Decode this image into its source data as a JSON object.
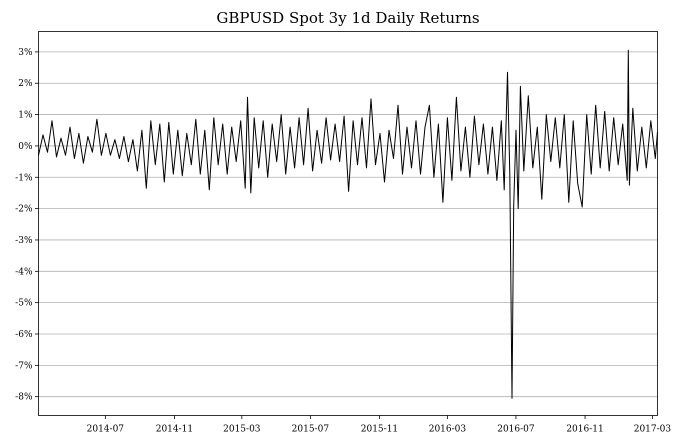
{
  "chart_data": {
    "type": "line",
    "title": "GBPUSD Spot 3y 1d Daily Returns",
    "xlabel": "",
    "ylabel": "",
    "x_range": [
      "2014-03-04",
      "2017-03-10"
    ],
    "ylim": [
      -8.6,
      3.65
    ],
    "y_ticks": [
      {
        "value": 3,
        "label": "3%"
      },
      {
        "value": 2,
        "label": "2%"
      },
      {
        "value": 1,
        "label": "1%"
      },
      {
        "value": 0,
        "label": "0%"
      },
      {
        "value": -1,
        "label": "-1%"
      },
      {
        "value": -2,
        "label": "-2%"
      },
      {
        "value": -3,
        "label": "-3%"
      },
      {
        "value": -4,
        "label": "-4%"
      },
      {
        "value": -5,
        "label": "-5%"
      },
      {
        "value": -6,
        "label": "-6%"
      },
      {
        "value": -7,
        "label": "-7%"
      },
      {
        "value": -8,
        "label": "-8%"
      }
    ],
    "x_ticks": [
      {
        "value": "2014-07-01",
        "label": "2014-07"
      },
      {
        "value": "2014-11-01",
        "label": "2014-11"
      },
      {
        "value": "2015-03-01",
        "label": "2015-03"
      },
      {
        "value": "2015-07-01",
        "label": "2015-07"
      },
      {
        "value": "2015-11-01",
        "label": "2015-11"
      },
      {
        "value": "2016-03-01",
        "label": "2016-03"
      },
      {
        "value": "2016-07-01",
        "label": "2016-07"
      },
      {
        "value": "2016-11-01",
        "label": "2016-11"
      },
      {
        "value": "2017-03-01",
        "label": "2017-03"
      }
    ],
    "grid": "horizontal",
    "series": [
      {
        "points": [
          [
            "2014-03-04",
            -0.3
          ],
          [
            "2014-03-12",
            0.35
          ],
          [
            "2014-03-20",
            -0.2
          ],
          [
            "2014-03-28",
            0.8
          ],
          [
            "2014-04-05",
            -0.35
          ],
          [
            "2014-04-13",
            0.25
          ],
          [
            "2014-04-21",
            -0.3
          ],
          [
            "2014-04-29",
            0.6
          ],
          [
            "2014-05-07",
            -0.4
          ],
          [
            "2014-05-15",
            0.4
          ],
          [
            "2014-05-23",
            -0.55
          ],
          [
            "2014-05-31",
            0.3
          ],
          [
            "2014-06-08",
            -0.2
          ],
          [
            "2014-06-16",
            0.85
          ],
          [
            "2014-06-24",
            -0.3
          ],
          [
            "2014-07-02",
            0.4
          ],
          [
            "2014-07-10",
            -0.3
          ],
          [
            "2014-07-18",
            0.2
          ],
          [
            "2014-07-26",
            -0.4
          ],
          [
            "2014-08-03",
            0.3
          ],
          [
            "2014-08-11",
            -0.5
          ],
          [
            "2014-08-19",
            0.2
          ],
          [
            "2014-08-27",
            -0.8
          ],
          [
            "2014-09-04",
            0.5
          ],
          [
            "2014-09-12",
            -1.35
          ],
          [
            "2014-09-20",
            0.8
          ],
          [
            "2014-09-28",
            -0.6
          ],
          [
            "2014-10-06",
            0.7
          ],
          [
            "2014-10-14",
            -1.15
          ],
          [
            "2014-10-22",
            0.75
          ],
          [
            "2014-10-30",
            -0.9
          ],
          [
            "2014-11-07",
            0.5
          ],
          [
            "2014-11-15",
            -0.95
          ],
          [
            "2014-11-23",
            0.4
          ],
          [
            "2014-12-01",
            -0.6
          ],
          [
            "2014-12-09",
            0.85
          ],
          [
            "2014-12-17",
            -0.9
          ],
          [
            "2014-12-25",
            0.5
          ],
          [
            "2015-01-02",
            -1.4
          ],
          [
            "2015-01-10",
            0.9
          ],
          [
            "2015-01-18",
            -0.6
          ],
          [
            "2015-01-26",
            0.7
          ],
          [
            "2015-02-03",
            -0.9
          ],
          [
            "2015-02-11",
            0.6
          ],
          [
            "2015-02-19",
            -0.5
          ],
          [
            "2015-02-27",
            0.8
          ],
          [
            "2015-03-07",
            -1.35
          ],
          [
            "2015-03-11",
            1.55
          ],
          [
            "2015-03-17",
            -1.5
          ],
          [
            "2015-03-23",
            0.9
          ],
          [
            "2015-03-31",
            -0.7
          ],
          [
            "2015-04-08",
            0.8
          ],
          [
            "2015-04-16",
            -1.0
          ],
          [
            "2015-04-24",
            0.7
          ],
          [
            "2015-05-02",
            -0.5
          ],
          [
            "2015-05-10",
            1.0
          ],
          [
            "2015-05-18",
            -0.9
          ],
          [
            "2015-05-26",
            0.6
          ],
          [
            "2015-06-03",
            -0.7
          ],
          [
            "2015-06-11",
            0.9
          ],
          [
            "2015-06-19",
            -0.6
          ],
          [
            "2015-06-27",
            1.2
          ],
          [
            "2015-07-05",
            -0.8
          ],
          [
            "2015-07-13",
            0.5
          ],
          [
            "2015-07-21",
            -0.55
          ],
          [
            "2015-07-29",
            0.9
          ],
          [
            "2015-08-06",
            -0.45
          ],
          [
            "2015-08-14",
            0.7
          ],
          [
            "2015-08-22",
            -0.5
          ],
          [
            "2015-08-30",
            0.95
          ],
          [
            "2015-09-07",
            -1.45
          ],
          [
            "2015-09-15",
            0.8
          ],
          [
            "2015-09-23",
            -0.6
          ],
          [
            "2015-10-01",
            0.9
          ],
          [
            "2015-10-09",
            -0.7
          ],
          [
            "2015-10-17",
            1.5
          ],
          [
            "2015-10-25",
            -0.6
          ],
          [
            "2015-11-02",
            0.4
          ],
          [
            "2015-11-10",
            -1.15
          ],
          [
            "2015-11-18",
            0.5
          ],
          [
            "2015-11-26",
            -0.4
          ],
          [
            "2015-12-04",
            1.3
          ],
          [
            "2015-12-12",
            -0.9
          ],
          [
            "2015-12-20",
            0.6
          ],
          [
            "2015-12-28",
            -0.7
          ],
          [
            "2016-01-05",
            0.8
          ],
          [
            "2016-01-13",
            -0.9
          ],
          [
            "2016-01-21",
            0.6
          ],
          [
            "2016-01-29",
            1.3
          ],
          [
            "2016-02-06",
            -1.0
          ],
          [
            "2016-02-14",
            0.7
          ],
          [
            "2016-02-22",
            -1.8
          ],
          [
            "2016-03-01",
            0.9
          ],
          [
            "2016-03-09",
            -1.1
          ],
          [
            "2016-03-17",
            1.55
          ],
          [
            "2016-03-25",
            -0.8
          ],
          [
            "2016-04-02",
            0.6
          ],
          [
            "2016-04-10",
            -1.0
          ],
          [
            "2016-04-18",
            0.95
          ],
          [
            "2016-04-26",
            -0.6
          ],
          [
            "2016-05-04",
            0.7
          ],
          [
            "2016-05-12",
            -0.9
          ],
          [
            "2016-05-20",
            0.6
          ],
          [
            "2016-05-28",
            -1.1
          ],
          [
            "2016-06-05",
            0.8
          ],
          [
            "2016-06-10",
            -1.4
          ],
          [
            "2016-06-16",
            2.35
          ],
          [
            "2016-06-20",
            -0.9
          ],
          [
            "2016-06-24",
            -8.05
          ],
          [
            "2016-06-27",
            -1.9
          ],
          [
            "2016-07-01",
            0.5
          ],
          [
            "2016-07-05",
            -2.0
          ],
          [
            "2016-07-09",
            1.9
          ],
          [
            "2016-07-15",
            -0.8
          ],
          [
            "2016-07-23",
            1.6
          ],
          [
            "2016-07-31",
            -0.7
          ],
          [
            "2016-08-08",
            0.6
          ],
          [
            "2016-08-16",
            -1.7
          ],
          [
            "2016-08-24",
            1.0
          ],
          [
            "2016-09-01",
            -0.5
          ],
          [
            "2016-09-09",
            0.9
          ],
          [
            "2016-09-17",
            -0.7
          ],
          [
            "2016-09-25",
            1.0
          ],
          [
            "2016-10-03",
            -1.8
          ],
          [
            "2016-10-11",
            0.8
          ],
          [
            "2016-10-19",
            -1.2
          ],
          [
            "2016-10-27",
            -1.95
          ],
          [
            "2016-11-04",
            1.0
          ],
          [
            "2016-11-12",
            -0.9
          ],
          [
            "2016-11-20",
            1.3
          ],
          [
            "2016-11-28",
            -0.7
          ],
          [
            "2016-12-06",
            1.1
          ],
          [
            "2016-12-14",
            -0.8
          ],
          [
            "2016-12-22",
            0.9
          ],
          [
            "2016-12-30",
            -0.6
          ],
          [
            "2017-01-07",
            0.7
          ],
          [
            "2017-01-15",
            -1.1
          ],
          [
            "2017-01-17",
            3.05
          ],
          [
            "2017-01-19",
            -1.25
          ],
          [
            "2017-01-25",
            1.2
          ],
          [
            "2017-02-02",
            -0.8
          ],
          [
            "2017-02-10",
            0.6
          ],
          [
            "2017-02-18",
            -0.7
          ],
          [
            "2017-02-26",
            0.8
          ],
          [
            "2017-03-06",
            -0.4
          ],
          [
            "2017-03-10",
            0.45
          ]
        ]
      }
    ]
  }
}
